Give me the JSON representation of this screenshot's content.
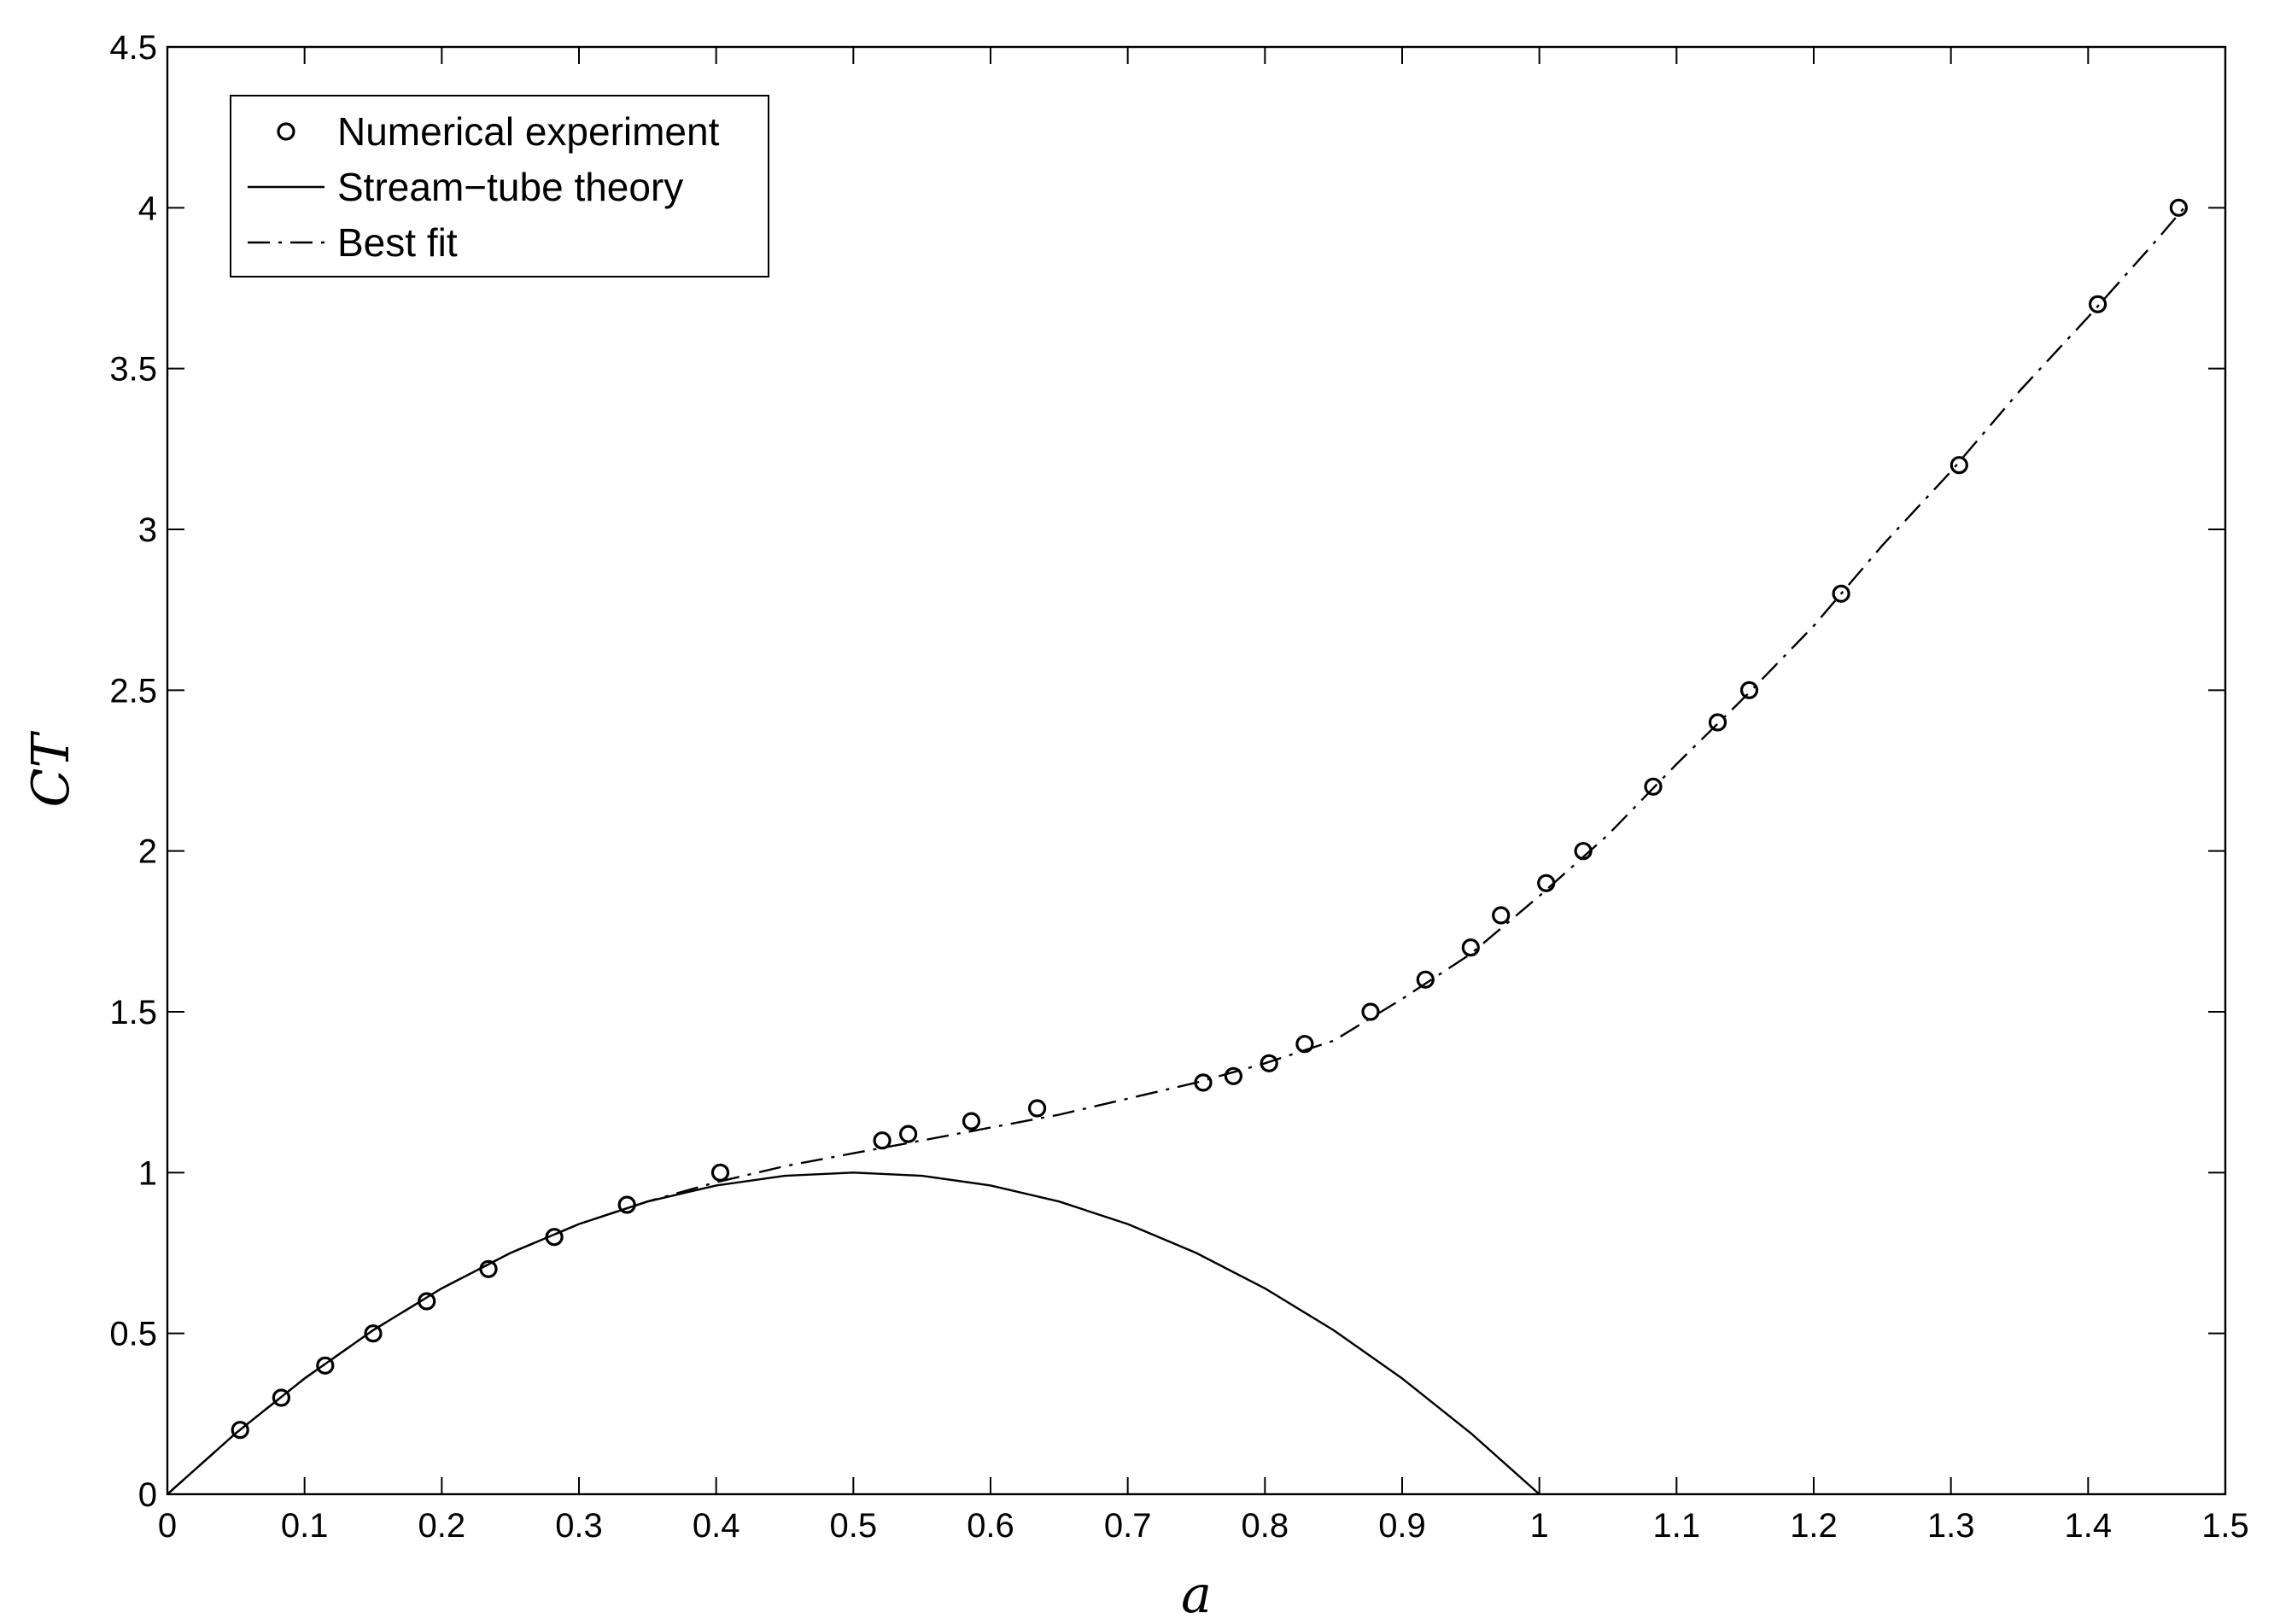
{
  "chart_data": {
    "type": "line",
    "title": "",
    "xlabel": "a",
    "ylabel": "CT",
    "xlim": [
      0,
      1.5
    ],
    "ylim": [
      0,
      4.5
    ],
    "grid": false,
    "legend_position": "top-left",
    "x_ticks": [
      0,
      0.1,
      0.2,
      0.3,
      0.4,
      0.5,
      0.6,
      0.7,
      0.8,
      0.9,
      1,
      1.1,
      1.2,
      1.3,
      1.4,
      1.5
    ],
    "x_tick_labels": [
      "0",
      "0.1",
      "0.2",
      "0.3",
      "0.4",
      "0.5",
      "0.6",
      "0.7",
      "0.8",
      "0.9",
      "1",
      "1.1",
      "1.2",
      "1.3",
      "1.4",
      "1.5"
    ],
    "y_ticks": [
      0,
      0.5,
      1,
      1.5,
      2,
      2.5,
      3,
      3.5,
      4,
      4.5
    ],
    "y_tick_labels": [
      "0",
      "0.5",
      "1",
      "1.5",
      "2",
      "2.5",
      "3",
      "3.5",
      "4",
      "4.5"
    ],
    "series": [
      {
        "name": "Numerical experiment",
        "style": "markers-circle",
        "color": "#000000",
        "x": [
          0.053,
          0.083,
          0.115,
          0.15,
          0.189,
          0.234,
          0.282,
          0.335,
          0.403,
          0.521,
          0.54,
          0.586,
          0.634,
          0.755,
          0.777,
          0.803,
          0.829,
          0.877,
          0.917,
          0.95,
          0.972,
          1.005,
          1.032,
          1.083,
          1.13,
          1.153,
          1.22,
          1.306,
          1.407,
          1.466
        ],
        "y": [
          0.2,
          0.3,
          0.4,
          0.5,
          0.6,
          0.7,
          0.8,
          0.9,
          1.0,
          1.1,
          1.12,
          1.16,
          1.2,
          1.28,
          1.3,
          1.34,
          1.4,
          1.5,
          1.6,
          1.7,
          1.8,
          1.9,
          2.0,
          2.2,
          2.4,
          2.5,
          2.8,
          3.2,
          3.7,
          4.0
        ]
      },
      {
        "name": "Stream−tube theory",
        "style": "solid",
        "color": "#000000",
        "x": [
          0,
          0.05,
          0.1,
          0.15,
          0.2,
          0.25,
          0.3,
          0.35,
          0.4,
          0.45,
          0.5,
          0.55,
          0.6,
          0.65,
          0.7,
          0.75,
          0.8,
          0.85,
          0.9,
          0.95,
          1.0
        ],
        "y": [
          0,
          0.19,
          0.36,
          0.51,
          0.64,
          0.75,
          0.84,
          0.91,
          0.96,
          0.99,
          1.0,
          0.99,
          0.96,
          0.91,
          0.84,
          0.75,
          0.64,
          0.51,
          0.36,
          0.19,
          0
        ]
      },
      {
        "name": "Best fit",
        "style": "dash-dot",
        "color": "#000000",
        "x": [
          0,
          0.05,
          0.1,
          0.15,
          0.2,
          0.25,
          0.3,
          0.35,
          0.4,
          0.45,
          0.5,
          0.55,
          0.6,
          0.65,
          0.7,
          0.75,
          0.8,
          0.85,
          0.9,
          0.95,
          1.0,
          1.05,
          1.1,
          1.15,
          1.2,
          1.25,
          1.3,
          1.35,
          1.4,
          1.45,
          1.47
        ],
        "y": [
          0,
          0.19,
          0.36,
          0.51,
          0.64,
          0.75,
          0.84,
          0.91,
          0.97,
          1.02,
          1.06,
          1.1,
          1.14,
          1.18,
          1.23,
          1.28,
          1.34,
          1.41,
          1.54,
          1.68,
          1.86,
          2.05,
          2.27,
          2.48,
          2.7,
          2.95,
          3.18,
          3.43,
          3.66,
          3.9,
          4.0
        ]
      }
    ]
  }
}
